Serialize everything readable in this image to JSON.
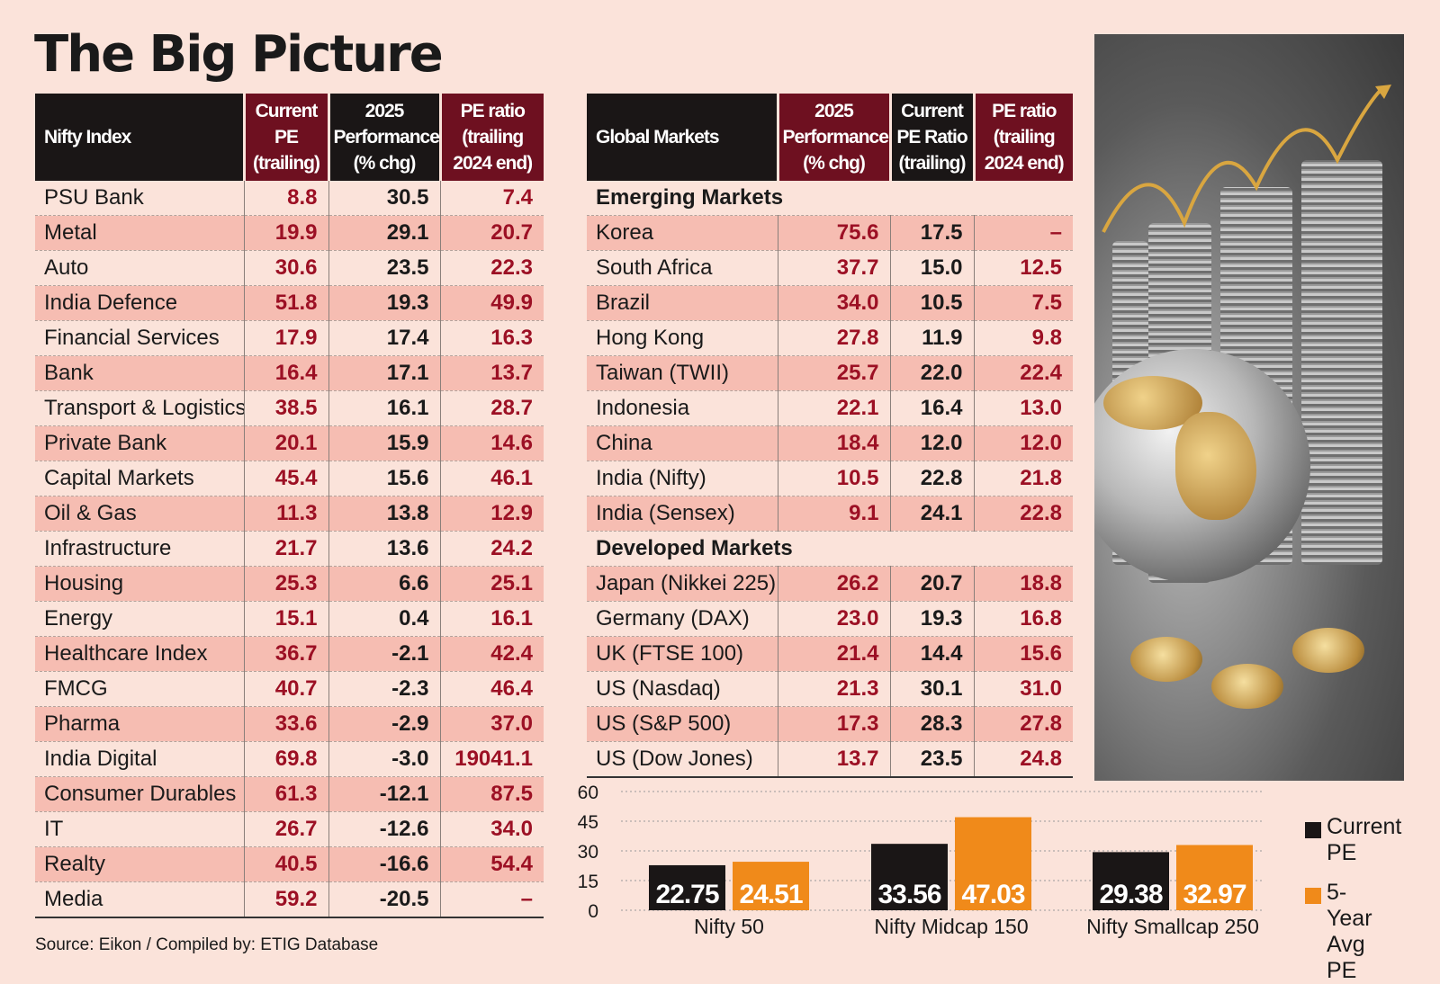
{
  "title": "The Big Picture",
  "source": "Source: Eikon / Compiled by: ETIG Database",
  "nifty_table": {
    "headers": [
      "Nifty Index",
      "Current PE (trailing)",
      "2025 Performance (% chg)",
      "PE ratio (trailing 2024 end)"
    ],
    "rows": [
      {
        "name": "PSU Bank",
        "pe": "8.8",
        "perf": "30.5",
        "pe2024": "7.4"
      },
      {
        "name": "Metal",
        "pe": "19.9",
        "perf": "29.1",
        "pe2024": "20.7"
      },
      {
        "name": "Auto",
        "pe": "30.6",
        "perf": "23.5",
        "pe2024": "22.3"
      },
      {
        "name": "India Defence",
        "pe": "51.8",
        "perf": "19.3",
        "pe2024": "49.9"
      },
      {
        "name": "Financial Services",
        "pe": "17.9",
        "perf": "17.4",
        "pe2024": "16.3"
      },
      {
        "name": "Bank",
        "pe": "16.4",
        "perf": "17.1",
        "pe2024": "13.7"
      },
      {
        "name": "Transport & Logistics",
        "pe": "38.5",
        "perf": "16.1",
        "pe2024": "28.7"
      },
      {
        "name": "Private Bank",
        "pe": "20.1",
        "perf": "15.9",
        "pe2024": "14.6"
      },
      {
        "name": "Capital Markets",
        "pe": "45.4",
        "perf": "15.6",
        "pe2024": "46.1"
      },
      {
        "name": "Oil & Gas",
        "pe": "11.3",
        "perf": "13.8",
        "pe2024": "12.9"
      },
      {
        "name": "Infrastructure",
        "pe": "21.7",
        "perf": "13.6",
        "pe2024": "24.2"
      },
      {
        "name": "Housing",
        "pe": "25.3",
        "perf": "6.6",
        "pe2024": "25.1"
      },
      {
        "name": "Energy",
        "pe": "15.1",
        "perf": "0.4",
        "pe2024": "16.1"
      },
      {
        "name": "Healthcare Index",
        "pe": "36.7",
        "perf": "-2.1",
        "pe2024": "42.4"
      },
      {
        "name": "FMCG",
        "pe": "40.7",
        "perf": "-2.3",
        "pe2024": "46.4"
      },
      {
        "name": "Pharma",
        "pe": "33.6",
        "perf": "-2.9",
        "pe2024": "37.0"
      },
      {
        "name": "India Digital",
        "pe": "69.8",
        "perf": "-3.0",
        "pe2024": "19041.1"
      },
      {
        "name": "Consumer Durables",
        "pe": "61.3",
        "perf": "-12.1",
        "pe2024": "87.5"
      },
      {
        "name": "IT",
        "pe": "26.7",
        "perf": "-12.6",
        "pe2024": "34.0"
      },
      {
        "name": "Realty",
        "pe": "40.5",
        "perf": "-16.6",
        "pe2024": "54.4"
      },
      {
        "name": "Media",
        "pe": "59.2",
        "perf": "-20.5",
        "pe2024": "–"
      }
    ]
  },
  "global_table": {
    "headers": [
      "Global Markets",
      "2025 Performance (% chg)",
      "Current PE Ratio (trailing)",
      "PE ratio (trailing 2024 end)"
    ],
    "emerging_label": "Emerging Markets",
    "emerging": [
      {
        "name": "Korea",
        "perf": "75.6",
        "pe": "17.5",
        "pe2024": "–"
      },
      {
        "name": "South Africa",
        "perf": "37.7",
        "pe": "15.0",
        "pe2024": "12.5"
      },
      {
        "name": "Brazil",
        "perf": "34.0",
        "pe": "10.5",
        "pe2024": "7.5"
      },
      {
        "name": "Hong Kong",
        "perf": "27.8",
        "pe": "11.9",
        "pe2024": "9.8"
      },
      {
        "name": "Taiwan (TWII)",
        "perf": "25.7",
        "pe": "22.0",
        "pe2024": "22.4"
      },
      {
        "name": "Indonesia",
        "perf": "22.1",
        "pe": "16.4",
        "pe2024": "13.0"
      },
      {
        "name": "China",
        "perf": "18.4",
        "pe": "12.0",
        "pe2024": "12.0"
      },
      {
        "name": "India (Nifty)",
        "perf": "10.5",
        "pe": "22.8",
        "pe2024": "21.8"
      },
      {
        "name": "India (Sensex)",
        "perf": "9.1",
        "pe": "24.1",
        "pe2024": "22.8"
      }
    ],
    "developed_label": "Developed Markets",
    "developed": [
      {
        "name": "Japan (Nikkei 225)",
        "perf": "26.2",
        "pe": "20.7",
        "pe2024": "18.8"
      },
      {
        "name": "Germany (DAX)",
        "perf": "23.0",
        "pe": "19.3",
        "pe2024": "16.8"
      },
      {
        "name": "UK (FTSE 100)",
        "perf": "21.4",
        "pe": "14.4",
        "pe2024": "15.6"
      },
      {
        "name": "US (Nasdaq)",
        "perf": "21.3",
        "pe": "30.1",
        "pe2024": "31.0"
      },
      {
        "name": "US (S&P 500)",
        "perf": "17.3",
        "pe": "28.3",
        "pe2024": "27.8"
      },
      {
        "name": "US (Dow Jones)",
        "perf": "13.7",
        "pe": "23.5",
        "pe2024": "24.8"
      }
    ]
  },
  "colors": {
    "background": "#fbe3da",
    "header_dark": "#1a1616",
    "header_red": "#6e1020",
    "value_red": "#9c1024",
    "row_shade": "#f6bdb2",
    "bar_current": "#1a1616",
    "bar_avg": "#f08a1a"
  },
  "chart_data": {
    "type": "bar",
    "categories": [
      "Nifty 50",
      "Nifty Midcap 150",
      "Nifty Smallcap 250"
    ],
    "series": [
      {
        "name": "Current PE",
        "values": [
          22.75,
          33.56,
          29.38
        ]
      },
      {
        "name": "5-Year Avg PE",
        "values": [
          24.51,
          47.03,
          32.97
        ]
      }
    ],
    "yticks": [
      0,
      15,
      30,
      45,
      60
    ],
    "ylim": [
      0,
      60
    ],
    "grid": true,
    "legend_position": "right",
    "legend": [
      {
        "line1": "Current",
        "line2": "PE"
      },
      {
        "line1": "5-Year",
        "line2": "Avg PE"
      }
    ]
  }
}
